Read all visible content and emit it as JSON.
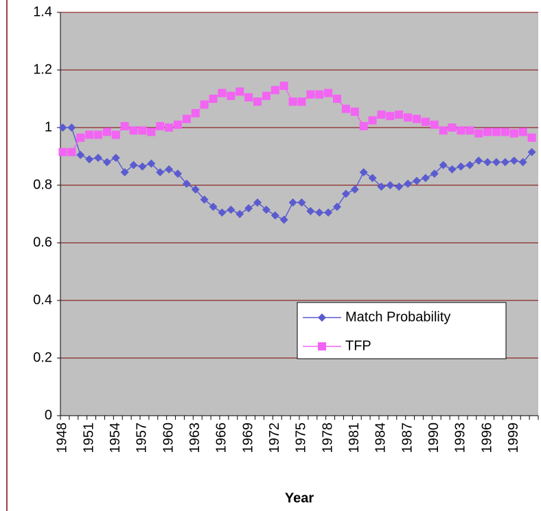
{
  "chart_data": {
    "type": "line",
    "x_label": "Year",
    "categories": [
      "1948",
      null,
      null,
      "1951",
      null,
      null,
      "1954",
      null,
      null,
      "1957",
      null,
      null,
      "1960",
      null,
      null,
      "1963",
      null,
      null,
      "1966",
      null,
      null,
      "1969",
      null,
      null,
      "1972",
      null,
      null,
      "1975",
      null,
      null,
      "1978",
      null,
      null,
      "1981",
      null,
      null,
      "1984",
      null,
      null,
      "1987",
      null,
      null,
      "1990",
      null,
      null,
      "1993",
      null,
      null,
      "1996",
      null,
      null,
      "1999",
      null,
      null
    ],
    "series": [
      {
        "name": "Match Probability",
        "color": "#5b5bd0",
        "marker": "diamond",
        "values": [
          1.0,
          1.0,
          0.905,
          0.89,
          0.895,
          0.88,
          0.895,
          0.845,
          0.87,
          0.865,
          0.875,
          0.845,
          0.855,
          0.84,
          0.805,
          0.785,
          0.75,
          0.725,
          0.705,
          0.715,
          0.7,
          0.72,
          0.74,
          0.715,
          0.695,
          0.68,
          0.74,
          0.74,
          0.71,
          0.705,
          0.705,
          0.725,
          0.77,
          0.785,
          0.845,
          0.825,
          0.795,
          0.8,
          0.795,
          0.805,
          0.815,
          0.825,
          0.84,
          0.87,
          0.855,
          0.865,
          0.87,
          0.885,
          0.88,
          0.88,
          0.88,
          0.885,
          0.88,
          0.915
        ]
      },
      {
        "name": "TFP",
        "color": "#f264f2",
        "marker": "square",
        "values": [
          0.915,
          0.915,
          0.965,
          0.975,
          0.975,
          0.985,
          0.975,
          1.005,
          0.99,
          0.99,
          0.985,
          1.005,
          1.0,
          1.01,
          1.03,
          1.05,
          1.08,
          1.1,
          1.12,
          1.11,
          1.125,
          1.105,
          1.09,
          1.11,
          1.13,
          1.145,
          1.09,
          1.09,
          1.115,
          1.115,
          1.12,
          1.1,
          1.065,
          1.055,
          1.005,
          1.025,
          1.045,
          1.04,
          1.045,
          1.035,
          1.03,
          1.02,
          1.01,
          0.99,
          1.0,
          0.99,
          0.99,
          0.98,
          0.985,
          0.985,
          0.985,
          0.98,
          0.985,
          0.965
        ]
      }
    ],
    "ylim": [
      0,
      1.4
    ],
    "yticks": [
      0,
      0.2,
      0.4,
      0.6,
      0.8,
      1,
      1.2,
      1.4
    ],
    "grid": true,
    "legend": "lower-right",
    "plot_background": "#c0c0c0",
    "grid_color": "#800000"
  }
}
